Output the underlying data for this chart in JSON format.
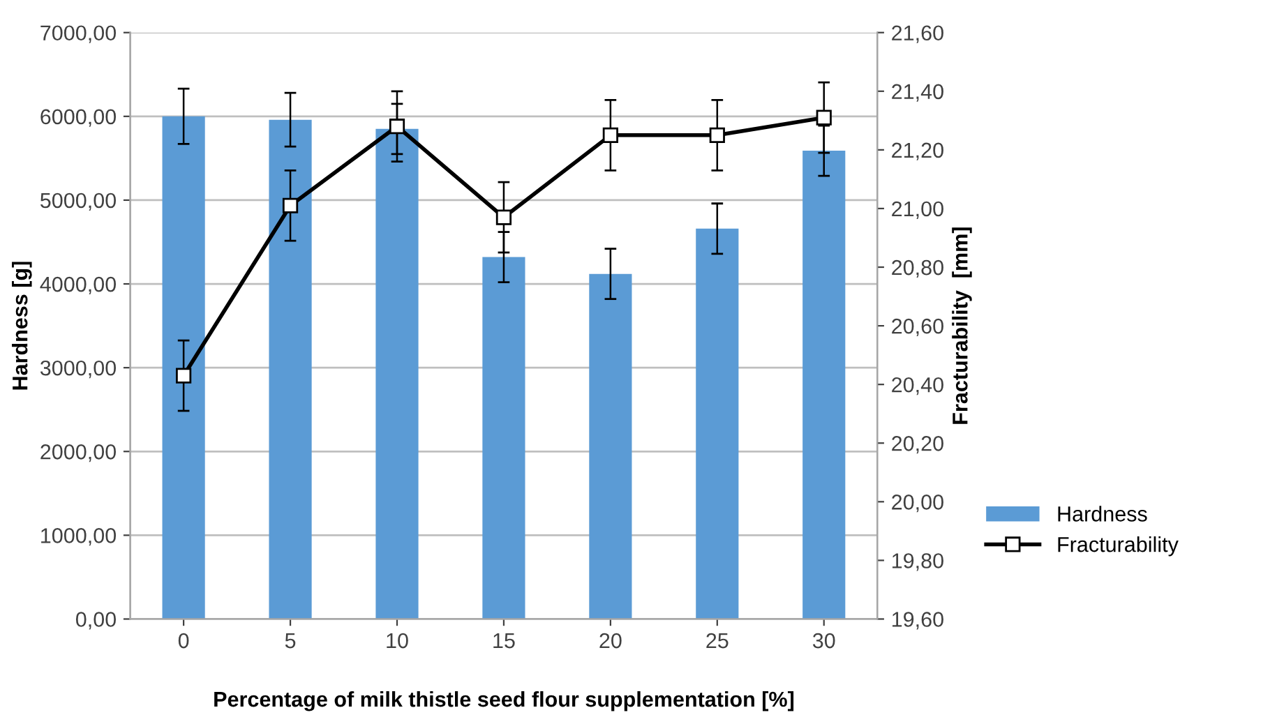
{
  "chart_data": {
    "type": "bar",
    "xlabel": "Percentage of milk thistle seed flour supplementation [%]",
    "ylabel": "Hardness [g]",
    "y2label": "Fracturability  [mm]",
    "categories": [
      "0",
      "5",
      "10",
      "15",
      "20",
      "25",
      "30"
    ],
    "series": [
      {
        "name": "Hardness",
        "color": "#5b9bd5",
        "values": [
          6000,
          5960,
          5850,
          4320,
          4120,
          4660,
          5590
        ],
        "errors": [
          330,
          320,
          300,
          300,
          300,
          300,
          300
        ]
      },
      {
        "name": "Fracturability",
        "type": "line",
        "axis": "y2",
        "color": "#000000",
        "marker": "square",
        "values": [
          20.43,
          21.01,
          21.28,
          20.97,
          21.25,
          21.25,
          21.31
        ],
        "errors": [
          0.12,
          0.12,
          0.12,
          0.12,
          0.12,
          0.12,
          0.12
        ]
      }
    ],
    "ylim": [
      0,
      7000
    ],
    "yticks": [
      {
        "value": 0,
        "label": "0,00"
      },
      {
        "value": 1000,
        "label": "1000,00"
      },
      {
        "value": 2000,
        "label": "2000,00"
      },
      {
        "value": 3000,
        "label": "3000,00"
      },
      {
        "value": 4000,
        "label": "4000,00"
      },
      {
        "value": 5000,
        "label": "5000,00"
      },
      {
        "value": 6000,
        "label": "6000,00"
      },
      {
        "value": 7000,
        "label": "7000,00"
      }
    ],
    "y2lim": [
      19.6,
      21.6
    ],
    "y2ticks": [
      {
        "value": 19.6,
        "label": "19,60"
      },
      {
        "value": 19.8,
        "label": "19,80"
      },
      {
        "value": 20.0,
        "label": "20,00"
      },
      {
        "value": 20.2,
        "label": "20,20"
      },
      {
        "value": 20.4,
        "label": "20,40"
      },
      {
        "value": 20.6,
        "label": "20,60"
      },
      {
        "value": 20.8,
        "label": "20,80"
      },
      {
        "value": 21.0,
        "label": "21,00"
      },
      {
        "value": 21.2,
        "label": "21,20"
      },
      {
        "value": 21.4,
        "label": "21,40"
      },
      {
        "value": 21.6,
        "label": "21,60"
      }
    ],
    "grid": "y",
    "legend": "right"
  }
}
